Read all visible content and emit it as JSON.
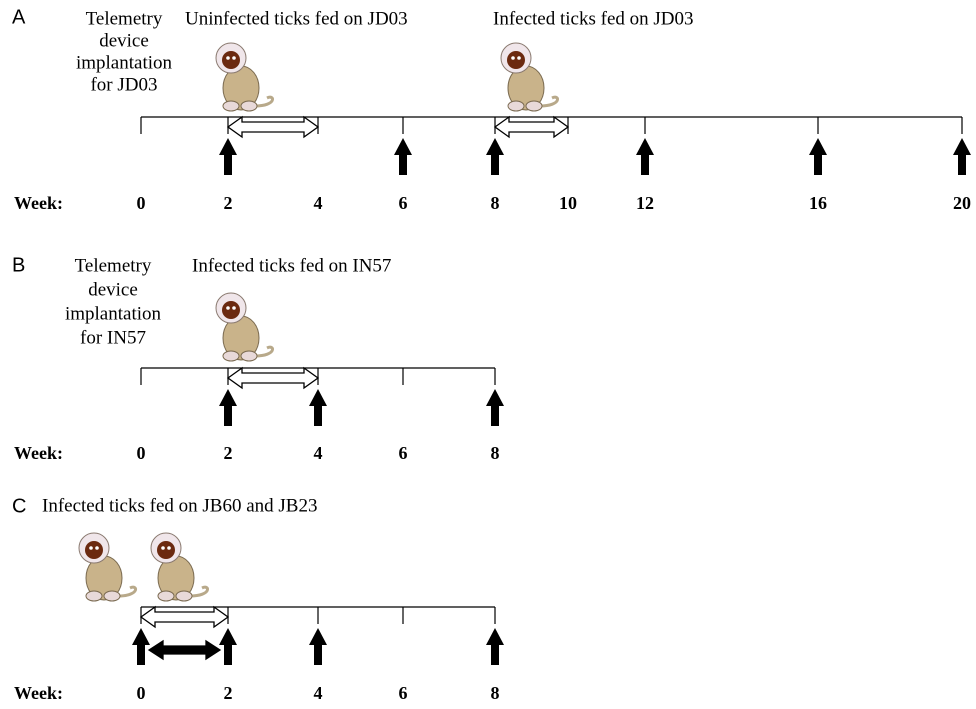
{
  "panels": [
    {
      "letter": "A",
      "week_label": "Week:",
      "weeks": [
        0,
        2,
        4,
        6,
        8,
        10,
        12,
        16,
        20
      ],
      "captions": [
        {
          "lines": [
            "Telemetry",
            "device",
            "implantation",
            "for JD03"
          ]
        },
        {
          "lines": [
            "Uninfected ticks fed on JD03"
          ]
        },
        {
          "lines": [
            "Infected ticks fed on JD03"
          ]
        }
      ]
    },
    {
      "letter": "B",
      "week_label": "Week:",
      "weeks": [
        0,
        2,
        4,
        6,
        8
      ],
      "captions": [
        {
          "lines": [
            "Telemetry",
            "device",
            "implantation",
            "for IN57"
          ]
        },
        {
          "lines": [
            "Infected ticks fed on IN57"
          ]
        }
      ]
    },
    {
      "letter": "C",
      "week_label": "Week:",
      "weeks": [
        0,
        2,
        4,
        6,
        8
      ],
      "captions": [
        {
          "lines": [
            "Infected ticks fed on JB60 and JB23"
          ]
        }
      ]
    }
  ]
}
